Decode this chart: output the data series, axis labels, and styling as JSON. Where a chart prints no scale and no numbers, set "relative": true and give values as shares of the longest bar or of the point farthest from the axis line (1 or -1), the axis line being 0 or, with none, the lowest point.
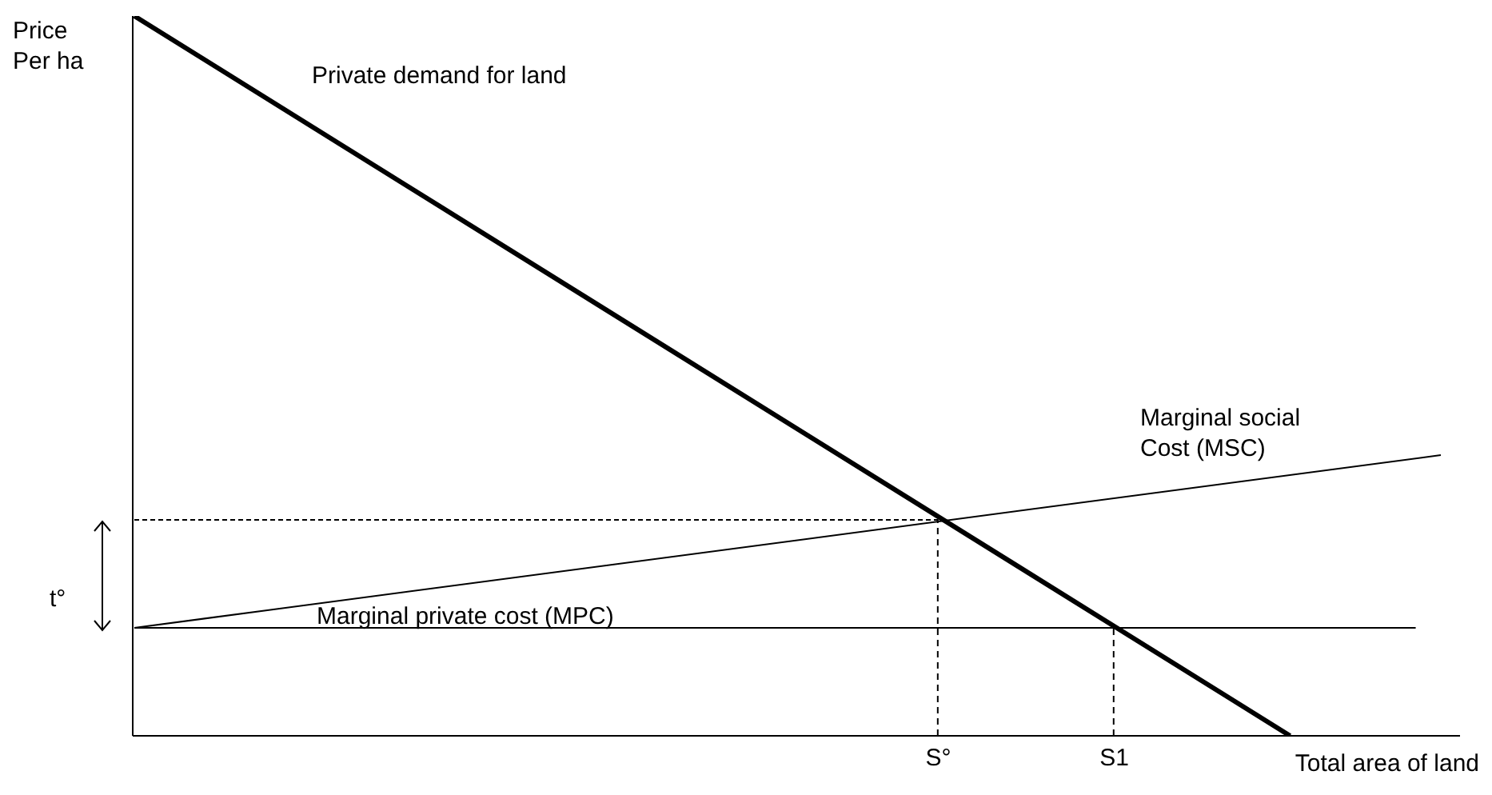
{
  "chart_data": {
    "type": "line",
    "relative": true,
    "ylabel": "Price\nPer ha",
    "xlabel": "Total area of land",
    "tick_labels": "x",
    "marker": "none",
    "annotations": [
      "t°"
    ],
    "categories": [
      null,
      null,
      null,
      null,
      null,
      null,
      null,
      null,
      null,
      null,
      null,
      null,
      null,
      null,
      null,
      null,
      null,
      null,
      null,
      null,
      null,
      null,
      null,
      null,
      null,
      null,
      null,
      null,
      null,
      null,
      null,
      null,
      "S°",
      null,
      null,
      null,
      null,
      null,
      null,
      "S1",
      null,
      null,
      null,
      null,
      null,
      null,
      null,
      null,
      null,
      null,
      null,
      null,
      null
    ],
    "series": [
      {
        "name": "Private demand for land",
        "color": "#000000",
        "values": [
          1,
          null,
          null,
          null,
          null,
          null,
          null,
          null,
          null,
          null,
          null,
          null,
          null,
          null,
          null,
          null,
          null,
          null,
          null,
          null,
          null,
          null,
          null,
          null,
          null,
          null,
          null,
          null,
          null,
          null,
          null,
          null,
          null,
          null,
          null,
          null,
          null,
          null,
          null,
          null,
          null,
          null,
          null,
          null,
          null,
          null,
          0,
          null,
          null,
          null,
          null,
          null,
          null
        ]
      },
      {
        "name": "Marginal social Cost (MSC)",
        "color": "#000000",
        "values": [
          0.15,
          null,
          null,
          null,
          null,
          null,
          null,
          null,
          null,
          null,
          null,
          null,
          null,
          null,
          null,
          null,
          null,
          null,
          null,
          null,
          null,
          null,
          null,
          null,
          null,
          null,
          null,
          null,
          null,
          null,
          null,
          null,
          null,
          null,
          null,
          null,
          null,
          null,
          null,
          null,
          null,
          null,
          null,
          null,
          null,
          null,
          null,
          null,
          null,
          null,
          null,
          null,
          0.39
        ]
      },
      {
        "name": "Marginal private cost (MPC)",
        "color": "#000000",
        "values": [
          0.15,
          null,
          null,
          null,
          null,
          null,
          null,
          null,
          null,
          null,
          null,
          null,
          null,
          null,
          null,
          null,
          null,
          null,
          null,
          null,
          null,
          null,
          null,
          null,
          null,
          null,
          null,
          null,
          null,
          null,
          null,
          null,
          null,
          null,
          null,
          null,
          null,
          null,
          null,
          null,
          null,
          null,
          null,
          null,
          null,
          null,
          null,
          null,
          null,
          null,
          null,
          0.15,
          null
        ]
      },
      {
        "color": "#000000",
        "line_style": "dashed",
        "values": [
          0.3,
          null,
          null,
          null,
          null,
          null,
          null,
          null,
          null,
          null,
          null,
          null,
          null,
          null,
          null,
          null,
          null,
          null,
          null,
          null,
          null,
          null,
          null,
          null,
          null,
          null,
          null,
          null,
          null,
          null,
          null,
          null,
          0.3,
          null,
          null,
          null,
          null,
          null,
          null,
          null,
          null,
          null,
          null,
          null,
          null,
          null,
          null,
          null,
          null,
          null,
          null,
          null,
          null
        ]
      },
      {
        "type": "bar",
        "color": "#000000",
        "line_style": "dashed",
        "values": [
          null,
          null,
          null,
          null,
          null,
          null,
          null,
          null,
          null,
          null,
          null,
          null,
          null,
          null,
          null,
          null,
          null,
          null,
          null,
          null,
          null,
          null,
          null,
          null,
          null,
          null,
          null,
          null,
          null,
          null,
          null,
          null,
          0.3,
          null,
          null,
          null,
          null,
          null,
          null,
          0.15,
          null,
          null,
          null,
          null,
          null,
          null,
          null,
          null,
          null,
          null,
          null,
          null,
          null
        ]
      }
    ]
  }
}
